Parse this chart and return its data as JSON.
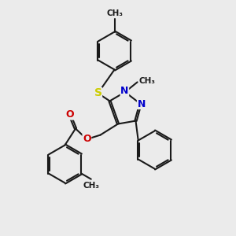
{
  "bg_color": "#ebebeb",
  "atom_colors": {
    "N": "#0000cc",
    "O": "#cc0000",
    "S": "#cccc00"
  },
  "bond_color": "#1a1a1a",
  "bond_width": 1.5,
  "figsize": [
    3.0,
    3.0
  ],
  "dpi": 100,
  "xlim": [
    0,
    10
  ],
  "ylim": [
    0,
    10
  ]
}
